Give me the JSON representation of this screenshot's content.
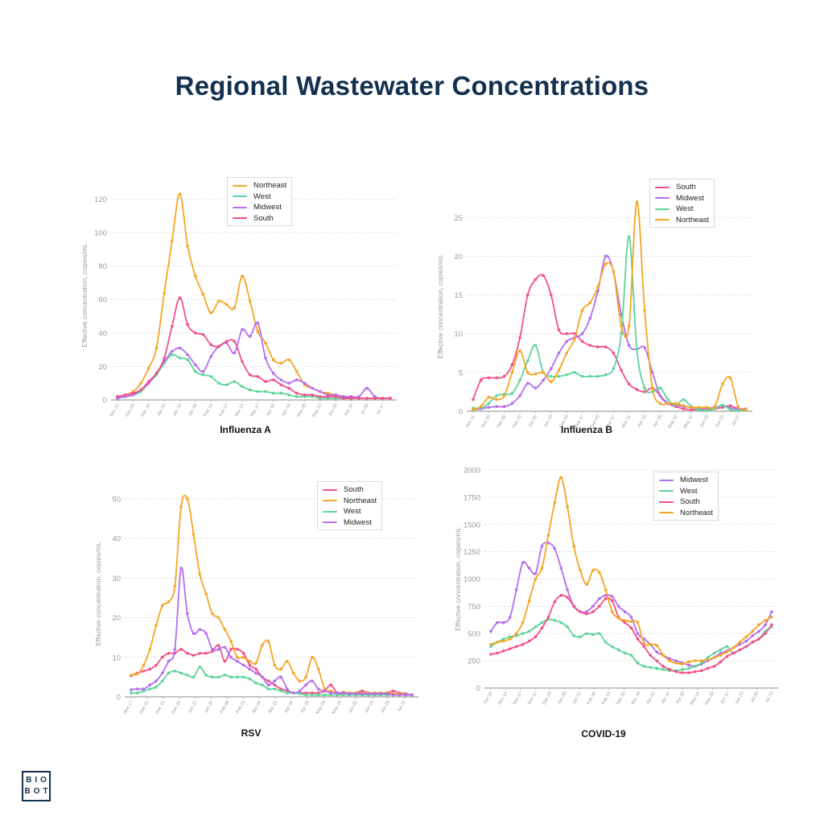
{
  "title": "Regional Wastewater Concentrations",
  "logo": {
    "line1": "BIO",
    "line2": "BOT"
  },
  "colors": {
    "Northeast": "#f5a623",
    "West": "#5fd49a",
    "Midwest": "#b46ef0",
    "South": "#f2508a"
  },
  "chart_data": [
    {
      "id": "flu-a",
      "type": "line",
      "title": "Influenza A",
      "ylabel": "Effective concentration, copies/mL",
      "ylim": [
        0,
        125
      ],
      "yticks": [
        0,
        20,
        40,
        60,
        80,
        100,
        120
      ],
      "xticks": [
        "Nov 21",
        "Nov 28",
        "Dec 05",
        "Dec 12",
        "Dec 19",
        "Dec 26",
        "Jan 02",
        "Jan 09",
        "Jan 16",
        "Jan 23",
        "Jan 30",
        "Feb 06",
        "Feb 13",
        "Feb 20",
        "Feb 27",
        "Mar 06",
        "Mar 13",
        "Mar 20",
        "Mar 27",
        "Apr 03",
        "Apr 10",
        "Apr 17",
        "Apr 24",
        "May 01",
        "May 08",
        "May 15",
        "May 22",
        "May 29",
        "Jun 05",
        "Jun 12",
        "Jun 19",
        "Jun 26",
        "Jul 03",
        "Jul 10",
        "Jul 17",
        "Jul 24"
      ],
      "xtick_stride": 2,
      "legend": [
        "Northeast",
        "West",
        "Midwest",
        "South"
      ],
      "series": [
        {
          "name": "Northeast",
          "values": [
            2,
            3,
            5,
            10,
            19,
            31,
            64,
            95,
            123,
            92,
            74,
            63,
            52,
            59,
            57,
            55,
            74,
            59,
            41,
            34,
            24,
            22,
            24,
            17,
            9,
            7,
            5,
            4,
            3,
            2,
            2,
            1,
            1,
            1,
            1,
            1
          ]
        },
        {
          "name": "West",
          "values": [
            2,
            2,
            3,
            5,
            10,
            15,
            22,
            27,
            25,
            24,
            17,
            15,
            14,
            10,
            9,
            11,
            8,
            6,
            5,
            5,
            4,
            4,
            3,
            2,
            2,
            2,
            1,
            1,
            1,
            1,
            1,
            1,
            1,
            1,
            1,
            1
          ]
        },
        {
          "name": "Midwest",
          "values": [
            1,
            2,
            3,
            6,
            10,
            16,
            23,
            29,
            31,
            27,
            21,
            17,
            26,
            32,
            34,
            28,
            42,
            38,
            46,
            25,
            16,
            12,
            10,
            12,
            10,
            7,
            5,
            3,
            3,
            2,
            2,
            2,
            7,
            2,
            1,
            1
          ]
        },
        {
          "name": "South",
          "values": [
            2,
            3,
            4,
            6,
            11,
            16,
            25,
            44,
            61,
            45,
            40,
            39,
            33,
            32,
            35,
            35,
            23,
            15,
            14,
            11,
            12,
            9,
            7,
            4,
            3,
            3,
            2,
            2,
            2,
            1,
            1,
            1,
            1,
            1,
            1,
            1
          ]
        }
      ]
    },
    {
      "id": "flu-b",
      "type": "line",
      "title": "Influenza B",
      "ylabel": "Effective concentration, copies/mL",
      "ylim": [
        0,
        27
      ],
      "yticks": [
        0,
        5,
        10,
        15,
        20,
        25
      ],
      "xticks": [
        "Nov 11",
        "Nov 18",
        "Nov 25",
        "Dec 02",
        "Dec 09",
        "Dec 16",
        "Dec 23",
        "Dec 30",
        "Jan 06",
        "Jan 13",
        "Jan 20",
        "Jan 27",
        "Feb 03",
        "Feb 10",
        "Feb 17",
        "Feb 24",
        "Mar 03",
        "Mar 10",
        "Mar 17",
        "Mar 24",
        "Mar 31",
        "Apr 07",
        "Apr 14",
        "Apr 21",
        "Apr 28",
        "May 05",
        "May 12",
        "May 19",
        "May 26",
        "Jun 02",
        "Jun 09",
        "Jun 16",
        "Jun 23",
        "Jun 30",
        "Jul 07",
        "Jul 14"
      ],
      "xtick_stride": 2,
      "legend": [
        "South",
        "Midwest",
        "West",
        "Northeast"
      ],
      "series": [
        {
          "name": "South",
          "values": [
            1.5,
            4,
            4.3,
            4.3,
            4.5,
            6,
            9.5,
            15,
            17,
            17.5,
            15,
            10.5,
            10,
            10,
            9,
            8.5,
            8.3,
            8.3,
            7.5,
            5.3,
            3.5,
            2.8,
            2.5,
            3,
            2,
            1,
            0.6,
            0.3,
            0.2,
            0.2,
            0.2,
            0.3,
            0.5,
            0.7,
            0.3,
            0.2
          ]
        },
        {
          "name": "Midwest",
          "values": [
            0.2,
            0.3,
            0.5,
            0.6,
            0.6,
            1,
            2,
            3.6,
            3,
            4,
            5.5,
            7.5,
            9,
            9.5,
            10,
            12,
            15.5,
            20,
            18,
            12.5,
            8.5,
            8,
            8.2,
            5,
            2,
            1,
            0.8,
            0.6,
            0.5,
            0.4,
            0.4,
            0.5,
            0.7,
            0.4,
            0.3,
            0.3
          ]
        },
        {
          "name": "West",
          "values": [
            0.4,
            0.4,
            1,
            2,
            2.2,
            2.3,
            4,
            6.5,
            8.5,
            5,
            4.5,
            4.5,
            4.7,
            5,
            4.5,
            4.5,
            4.5,
            4.7,
            5.5,
            10,
            22.5,
            8,
            3,
            2.5,
            3,
            1.5,
            0.8,
            1.5,
            0.6,
            0.2,
            0.1,
            0.3,
            0.8,
            0.2,
            0.1,
            0.1
          ]
        },
        {
          "name": "Northeast",
          "values": [
            0.2,
            0.6,
            1.8,
            1.5,
            2,
            5,
            7.8,
            5,
            4.8,
            5,
            3.8,
            5.3,
            7.5,
            9.3,
            13,
            14,
            16,
            19,
            18,
            11,
            11,
            27,
            13,
            3,
            1,
            1,
            1,
            0.7,
            0.5,
            0.5,
            0.5,
            0.6,
            3.5,
            4.3,
            0.6,
            0.2
          ]
        }
      ]
    },
    {
      "id": "rsv",
      "type": "line",
      "title": "RSV",
      "ylabel": "Effective concentration, copies/mL",
      "ylim": [
        0,
        52
      ],
      "yticks": [
        0,
        10,
        20,
        30,
        40,
        50
      ],
      "xticks": [
        "Nov 17",
        "Nov 24",
        "Dec 01",
        "Dec 08",
        "Dec 15",
        "Dec 22",
        "Dec 29",
        "Jan 05",
        "Jan 12",
        "Jan 19",
        "Jan 26",
        "Feb 02",
        "Feb 09",
        "Feb 16",
        "Feb 23",
        "Mar 02",
        "Mar 09",
        "Mar 16",
        "Mar 23",
        "Mar 30",
        "Apr 06",
        "Apr 13",
        "Apr 20",
        "Apr 27",
        "May 04",
        "May 11",
        "May 18",
        "May 25",
        "Jun 01",
        "Jun 08",
        "Jun 15",
        "Jun 22",
        "Jun 29",
        "Jul 06",
        "Jul 13",
        "Jul 20"
      ],
      "xtick_stride": 2,
      "legend": [
        "South",
        "Northeast",
        "West",
        "Midwest"
      ],
      "series": [
        {
          "name": "South",
          "values": [
            5.3,
            6,
            6.5,
            7,
            8,
            10,
            11,
            11,
            12,
            11,
            10.5,
            11,
            11,
            11.5,
            13,
            9,
            12,
            12,
            11,
            8,
            7,
            5,
            4,
            3,
            2,
            1.5,
            1,
            1,
            1,
            1,
            1,
            1.5,
            3,
            1,
            1,
            1,
            1,
            1.5,
            1,
            1,
            1,
            1,
            1.5,
            1,
            0.8,
            0.5
          ]
        },
        {
          "name": "Northeast",
          "values": [
            5.5,
            5.8,
            8,
            12,
            18,
            23,
            24,
            28,
            48,
            50,
            41,
            31,
            26,
            21,
            20,
            17,
            14,
            10,
            10,
            9,
            8.5,
            13,
            14,
            8,
            7,
            9,
            6,
            4,
            5,
            10,
            7,
            2,
            1.5,
            1,
            1.2,
            1,
            1,
            1,
            1,
            1,
            1,
            1,
            0.8,
            0.8,
            0.6,
            0.5
          ]
        },
        {
          "name": "West",
          "values": [
            1,
            1,
            1.5,
            2,
            2.5,
            4,
            6,
            6.5,
            6,
            5.5,
            5,
            7.5,
            5.5,
            5,
            5,
            5.5,
            5,
            5,
            5,
            4.5,
            3.5,
            3,
            2,
            2,
            1.5,
            1,
            1,
            0.8,
            0.5,
            0.5,
            0.5,
            0.5,
            0.5,
            0.5,
            0.5,
            0.5,
            0.5,
            0.5,
            0.5,
            0.5,
            0.5,
            0.5,
            0.5,
            0.5,
            0.5,
            0.5
          ]
        },
        {
          "name": "Midwest",
          "values": [
            1.8,
            2,
            2,
            3,
            4,
            6,
            9,
            12,
            32.5,
            21,
            16,
            17,
            16,
            12,
            12,
            12.5,
            10,
            9,
            8,
            7,
            6,
            5,
            3,
            4,
            5,
            2,
            1,
            1.5,
            3,
            4,
            2,
            1.5,
            1,
            1,
            1,
            0.8,
            0.8,
            0.8,
            0.8,
            0.8,
            0.8,
            0.8,
            0.5,
            0.5,
            0.5,
            0.5
          ]
        }
      ]
    },
    {
      "id": "covid",
      "type": "line",
      "title": "COVID-19",
      "ylabel": "Effective concentration, copies/mL",
      "ylim": [
        0,
        2000
      ],
      "yticks": [
        0,
        250,
        500,
        750,
        1000,
        1250,
        1500,
        1750,
        2000
      ],
      "xticks": [
        "Oct 30",
        "Nov 06",
        "Nov 13",
        "Nov 20",
        "Nov 27",
        "Dec 04",
        "Dec 11",
        "Dec 18",
        "Dec 25",
        "Jan 01",
        "Jan 08",
        "Jan 15",
        "Jan 22",
        "Jan 29",
        "Feb 05",
        "Feb 12",
        "Feb 19",
        "Feb 26",
        "Mar 05",
        "Mar 12",
        "Mar 19",
        "Mar 26",
        "Apr 02",
        "Apr 09",
        "Apr 16",
        "Apr 23",
        "Apr 30",
        "May 07",
        "May 14",
        "May 21",
        "May 28",
        "Jun 04",
        "Jun 11",
        "Jun 18",
        "Jun 25",
        "Jul 02",
        "Jul 09",
        "Jul 16",
        "Jul 23"
      ],
      "xtick_stride": 2,
      "legend": [
        "Midwest",
        "West",
        "South",
        "Northeast"
      ],
      "series": [
        {
          "name": "Midwest",
          "values": [
            520,
            600,
            600,
            650,
            900,
            1150,
            1100,
            1050,
            1300,
            1330,
            1280,
            1100,
            900,
            750,
            700,
            700,
            750,
            820,
            850,
            840,
            750,
            700,
            650,
            500,
            450,
            400,
            330,
            300,
            270,
            250,
            230,
            210,
            200,
            220,
            250,
            280,
            320,
            340,
            370,
            400,
            430,
            480,
            520,
            580,
            700
          ]
        },
        {
          "name": "West",
          "values": [
            380,
            420,
            450,
            470,
            480,
            500,
            520,
            560,
            600,
            630,
            620,
            600,
            560,
            480,
            470,
            500,
            490,
            500,
            420,
            380,
            350,
            320,
            300,
            230,
            200,
            190,
            180,
            170,
            160,
            160,
            170,
            180,
            200,
            230,
            280,
            320,
            350,
            380,
            320,
            350,
            380,
            420,
            450,
            520,
            560
          ]
        },
        {
          "name": "South",
          "values": [
            310,
            320,
            340,
            360,
            380,
            400,
            430,
            470,
            550,
            650,
            790,
            850,
            830,
            750,
            700,
            680,
            700,
            750,
            820,
            800,
            650,
            600,
            550,
            450,
            380,
            300,
            250,
            200,
            170,
            150,
            140,
            140,
            150,
            160,
            180,
            200,
            240,
            290,
            320,
            350,
            380,
            420,
            450,
            500,
            580
          ]
        },
        {
          "name": "Northeast",
          "values": [
            400,
            420,
            430,
            450,
            500,
            600,
            800,
            1000,
            1100,
            1400,
            1700,
            1930,
            1660,
            1300,
            1080,
            950,
            1080,
            1060,
            900,
            700,
            640,
            620,
            610,
            600,
            410,
            400,
            390,
            300,
            250,
            230,
            220,
            240,
            250,
            250,
            260,
            280,
            300,
            330,
            370,
            420,
            470,
            520,
            580,
            620,
            650
          ]
        }
      ]
    }
  ]
}
